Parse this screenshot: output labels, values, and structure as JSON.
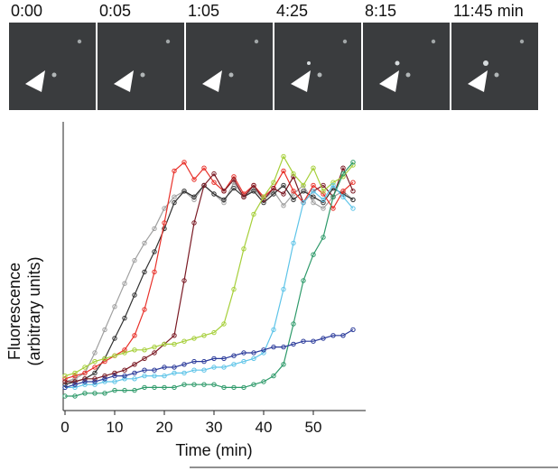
{
  "panel_labels": [
    "0:00",
    "0:05",
    "1:05",
    "4:25",
    "8:15",
    "11:45 min"
  ],
  "chart_data": {
    "type": "line",
    "xlabel": "Time (min)",
    "ylabel": [
      "Fluorescence",
      "(arbitrary units)"
    ],
    "x": [
      0,
      2,
      4,
      6,
      8,
      10,
      12,
      14,
      16,
      18,
      20,
      22,
      24,
      26,
      28,
      30,
      32,
      34,
      36,
      38,
      40,
      42,
      44,
      46,
      48,
      50,
      52,
      54,
      56,
      58
    ],
    "xlim": [
      0,
      60
    ],
    "xticks": [
      0,
      10,
      20,
      30,
      40,
      50
    ],
    "ylim": [
      0,
      10
    ],
    "series": [
      {
        "color": "#a0a0a0",
        "values": [
          1.0,
          1.1,
          1.3,
          2.0,
          2.8,
          3.6,
          4.4,
          5.2,
          5.8,
          6.3,
          7.0,
          7.4,
          7.6,
          7.3,
          7.8,
          7.5,
          7.2,
          7.9,
          7.4,
          7.7,
          7.3,
          7.6,
          7.1,
          7.5,
          7.8,
          7.2,
          7.0,
          7.4,
          7.6,
          7.3
        ]
      },
      {
        "color": "#333333",
        "values": [
          0.9,
          1.0,
          1.1,
          1.3,
          1.8,
          2.5,
          3.2,
          4.0,
          4.8,
          5.5,
          6.3,
          7.2,
          7.6,
          7.4,
          7.8,
          7.5,
          7.3,
          7.7,
          7.4,
          7.6,
          7.2,
          7.5,
          7.8,
          7.3,
          7.6,
          7.4,
          7.2,
          7.7,
          7.5,
          7.3
        ]
      },
      {
        "color": "#e8312a",
        "values": [
          1.1,
          1.2,
          1.3,
          1.5,
          1.7,
          1.9,
          2.1,
          2.6,
          3.5,
          4.8,
          6.5,
          8.3,
          8.6,
          8.0,
          8.4,
          7.9,
          7.6,
          8.1,
          7.5,
          7.8,
          7.4,
          7.7,
          8.3,
          7.6,
          7.2,
          7.8,
          7.5,
          7.0,
          7.6,
          7.9
        ]
      },
      {
        "color": "#7a1a24",
        "values": [
          1.0,
          1.0,
          1.1,
          1.1,
          1.2,
          1.3,
          1.4,
          1.6,
          1.8,
          2.0,
          2.3,
          2.6,
          4.5,
          6.5,
          7.8,
          8.2,
          7.6,
          8.0,
          7.4,
          7.8,
          7.3,
          7.7,
          7.5,
          8.1,
          7.2,
          7.6,
          7.8,
          7.4,
          8.4,
          7.6
        ]
      },
      {
        "color": "#a6cf3a",
        "values": [
          1.2,
          1.3,
          1.5,
          1.7,
          1.8,
          1.9,
          2.0,
          2.1,
          2.1,
          2.2,
          2.3,
          2.3,
          2.4,
          2.5,
          2.6,
          2.7,
          3.0,
          4.2,
          5.6,
          6.8,
          7.4,
          7.9,
          8.8,
          8.2,
          7.8,
          8.4,
          7.6,
          7.9,
          8.1,
          8.5
        ]
      },
      {
        "color": "#5ec4e8",
        "values": [
          0.8,
          0.8,
          0.9,
          0.9,
          1.0,
          1.0,
          1.1,
          1.1,
          1.2,
          1.2,
          1.2,
          1.3,
          1.3,
          1.4,
          1.4,
          1.5,
          1.5,
          1.6,
          1.7,
          1.8,
          2.0,
          2.8,
          4.2,
          5.8,
          7.2,
          7.6,
          7.3,
          7.8,
          7.4,
          7.0
        ]
      },
      {
        "color": "#2e9a6a",
        "values": [
          0.5,
          0.5,
          0.6,
          0.6,
          0.6,
          0.7,
          0.7,
          0.7,
          0.8,
          0.8,
          0.8,
          0.8,
          0.9,
          0.9,
          0.9,
          0.9,
          0.8,
          0.8,
          0.8,
          0.9,
          1.0,
          1.2,
          1.6,
          3.0,
          4.5,
          5.4,
          6.0,
          7.4,
          8.2,
          8.6
        ]
      },
      {
        "color": "#2a3a9a",
        "values": [
          0.8,
          0.9,
          1.0,
          1.0,
          1.1,
          1.2,
          1.2,
          1.3,
          1.4,
          1.4,
          1.5,
          1.5,
          1.6,
          1.7,
          1.7,
          1.8,
          1.8,
          1.9,
          2.0,
          2.0,
          2.1,
          2.2,
          2.2,
          2.3,
          2.4,
          2.4,
          2.5,
          2.6,
          2.6,
          2.8
        ]
      }
    ]
  }
}
